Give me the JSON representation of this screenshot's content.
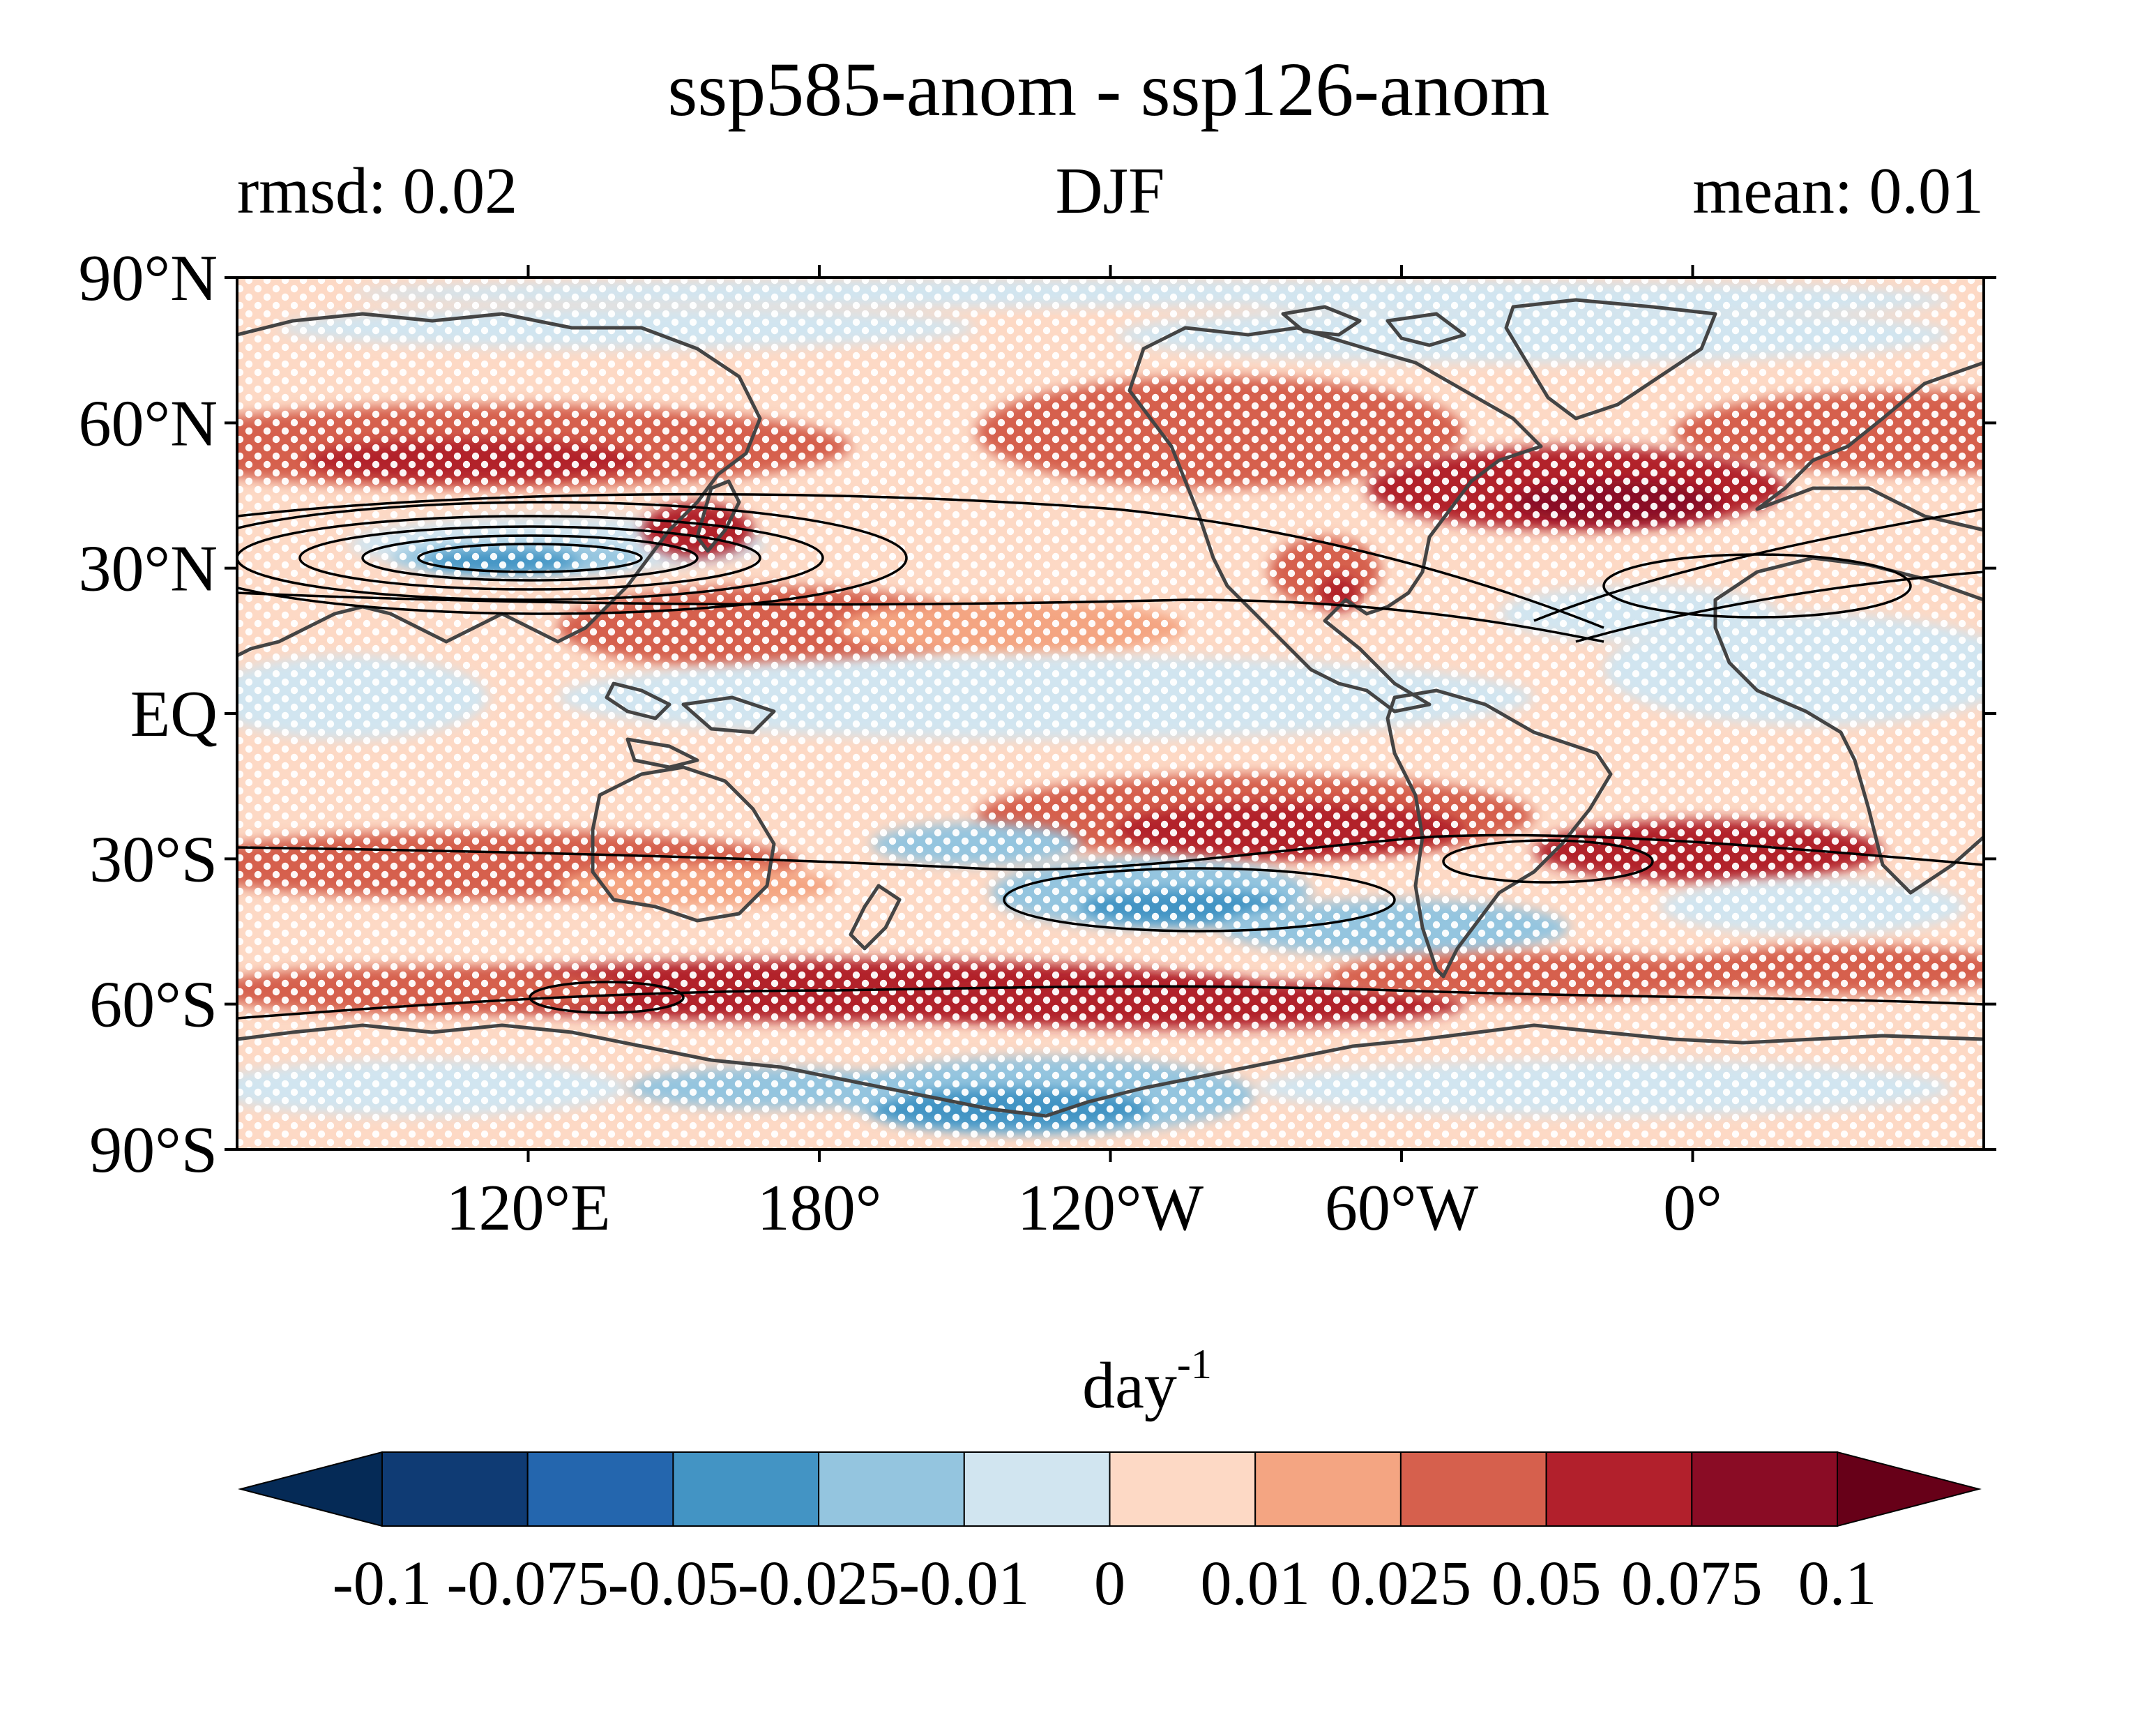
{
  "header": {
    "title": "ssp585-anom - ssp126-anom",
    "left_label": "rmsd: 0.02",
    "center_label": "DJF",
    "right_label": "mean: 0.01"
  },
  "map": {
    "projection": "equirectangular, central longitude 0° with 60°E at left edge",
    "lat_ticks": [
      "90°N",
      "60°N",
      "30°N",
      "EQ",
      "30°S",
      "60°S",
      "90°S"
    ],
    "lon_ticks": [
      "120°E",
      "180°",
      "120°W",
      "60°W",
      "0°"
    ],
    "stippling": "white dots where difference is not significant",
    "contours": "black lines: climatological jet contours"
  },
  "colorbar": {
    "units_base": "day",
    "units_exp": "-1",
    "tick_labels": [
      "-0.1",
      "-0.075",
      "-0.05",
      "-0.025",
      "-0.01",
      "0",
      "0.01",
      "0.025",
      "0.05",
      "0.075",
      "0.1"
    ],
    "colors": [
      "#052a56",
      "#0f3b74",
      "#2466ae",
      "#4394c4",
      "#94c5df",
      "#d1e5f0",
      "#fdd9c5",
      "#f4a582",
      "#d6604d",
      "#b2202c",
      "#8a0c25",
      "#670018"
    ]
  }
}
